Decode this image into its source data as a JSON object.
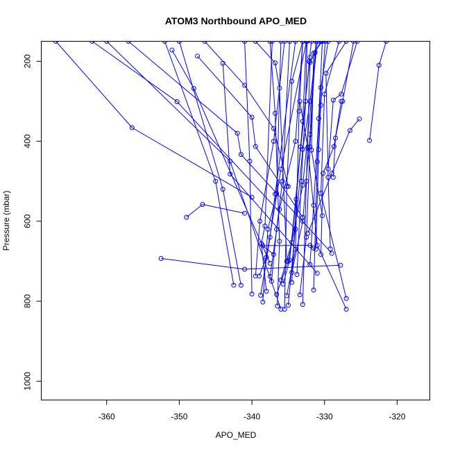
{
  "chart_data": {
    "type": "line",
    "title": "ATOM3 Northbound APO_MED",
    "xlabel": "APO_MED",
    "ylabel": "Pressure (mbar)",
    "xlim": [
      -369,
      -315.5
    ],
    "ylim": [
      1047,
      150
    ],
    "y_reversed": true,
    "x_ticks": [
      -360,
      -350,
      -340,
      -330,
      -320
    ],
    "y_ticks": [
      200,
      400,
      600,
      800,
      1000
    ],
    "grid": false,
    "legend": "none",
    "series_color": "#0000ff",
    "marker": "open-circle",
    "profiles": [
      {
        "points": [
          [
            -367,
            150
          ],
          [
            -356.5,
            366
          ],
          [
            -340,
            540
          ]
        ]
      },
      {
        "points": [
          [
            -362,
            150
          ],
          [
            -350.3,
            301
          ],
          [
            -334,
            620
          ]
        ]
      },
      {
        "points": [
          [
            -360,
            150
          ],
          [
            -343,
            450
          ],
          [
            -336,
            820
          ]
        ]
      },
      {
        "points": [
          [
            -357,
            150
          ],
          [
            -342,
            380
          ],
          [
            -341.5,
            433
          ],
          [
            -329,
            680
          ]
        ]
      },
      {
        "points": [
          [
            -351,
            172
          ],
          [
            -348,
            268
          ],
          [
            -337.5,
            705
          ]
        ]
      },
      {
        "points": [
          [
            -347.5,
            187
          ],
          [
            -340,
            340
          ],
          [
            -339.5,
            413
          ],
          [
            -333,
            590
          ]
        ]
      },
      {
        "points": [
          [
            -344,
            205
          ],
          [
            -343,
            482
          ],
          [
            -331,
            730
          ]
        ]
      },
      {
        "points": [
          [
            -346.5,
            150
          ],
          [
            -341,
            260
          ],
          [
            -337,
            368
          ],
          [
            -335,
            513
          ]
        ]
      },
      {
        "points": [
          [
            -339.5,
            150
          ],
          [
            -336.8,
            204
          ],
          [
            -336.2,
            267
          ],
          [
            -335.2,
            700
          ]
        ]
      },
      {
        "points": [
          [
            -352.5,
            693
          ],
          [
            -341,
            720
          ],
          [
            -327.8,
            710
          ]
        ]
      },
      {
        "points": [
          [
            -349,
            590
          ],
          [
            -346.8,
            558
          ],
          [
            -341,
            580
          ]
        ]
      },
      {
        "points": [
          [
            -342.5,
            760
          ],
          [
            -345,
            500
          ],
          [
            -352,
            150
          ]
        ]
      },
      {
        "points": [
          [
            -341.5,
            760
          ],
          [
            -344,
            520
          ],
          [
            -350,
            150
          ]
        ]
      },
      {
        "points": [
          [
            -340,
            782
          ],
          [
            -340.3,
            450
          ],
          [
            -341,
            150
          ]
        ]
      },
      {
        "points": [
          [
            -338.5,
            802
          ],
          [
            -337.8,
            620
          ],
          [
            -336.6,
            531
          ],
          [
            -336,
            150
          ]
        ]
      },
      {
        "points": [
          [
            -336.5,
            812
          ],
          [
            -336.2,
            650
          ],
          [
            -336.8,
            330
          ],
          [
            -337.5,
            150
          ]
        ]
      },
      {
        "points": [
          [
            -335.5,
            820
          ],
          [
            -335.2,
            513
          ],
          [
            -334.5,
            250
          ],
          [
            -333,
            150
          ]
        ]
      },
      {
        "points": [
          [
            -335,
            810
          ],
          [
            -333,
            420
          ],
          [
            -332,
            300
          ],
          [
            -331,
            150
          ]
        ]
      },
      {
        "points": [
          [
            -333,
            808
          ],
          [
            -332.5,
            500
          ],
          [
            -332,
            203
          ],
          [
            -330.5,
            150
          ]
        ]
      },
      {
        "points": [
          [
            -331.5,
            772
          ],
          [
            -331,
            451
          ],
          [
            -330.5,
            266
          ],
          [
            -329.5,
            150
          ]
        ]
      },
      {
        "points": [
          [
            -327,
            820
          ],
          [
            -331,
            660
          ],
          [
            -332.3,
            415
          ],
          [
            -333.4,
            300
          ]
        ]
      },
      {
        "points": [
          [
            -327,
            793
          ],
          [
            -330.5,
            530
          ],
          [
            -330,
            282
          ],
          [
            -328,
            150
          ]
        ]
      },
      {
        "points": [
          [
            -329.2,
            669
          ],
          [
            -329.5,
            490
          ],
          [
            -329.8,
            230
          ],
          [
            -327,
            150
          ]
        ]
      },
      {
        "points": [
          [
            -329.5,
            469
          ],
          [
            -328.8,
            297
          ],
          [
            -327.7,
            282
          ],
          [
            -325.5,
            150
          ]
        ]
      },
      {
        "points": [
          [
            -323.8,
            398
          ],
          [
            -322.5,
            210
          ],
          [
            -321.5,
            150
          ]
        ]
      },
      {
        "points": [
          [
            -325.2,
            344
          ],
          [
            -326.5,
            373
          ],
          [
            -329,
            480
          ],
          [
            -332.3,
            630
          ]
        ]
      },
      {
        "points": [
          [
            -330.3,
            586
          ],
          [
            -331.8,
            422
          ],
          [
            -331.5,
            180
          ],
          [
            -330.3,
            150
          ]
        ]
      },
      {
        "points": [
          [
            -337,
            683
          ],
          [
            -338.5,
            661
          ],
          [
            -332,
            660
          ],
          [
            -331.5,
            667
          ]
        ]
      },
      {
        "points": [
          [
            -338.8,
            785
          ],
          [
            -337.5,
            640
          ],
          [
            -336.8,
            532
          ],
          [
            -334,
            150
          ]
        ]
      },
      {
        "points": [
          [
            -339,
            737
          ],
          [
            -338,
            690
          ],
          [
            -336,
            470
          ],
          [
            -332.5,
            150
          ]
        ]
      },
      {
        "points": [
          [
            -336.6,
            783
          ],
          [
            -335,
            700
          ],
          [
            -333,
            510
          ],
          [
            -331,
            150
          ]
        ]
      },
      {
        "points": [
          [
            -336,
            747
          ],
          [
            -334.5,
            653
          ],
          [
            -333.3,
            414
          ],
          [
            -332,
            190
          ]
        ]
      },
      {
        "points": [
          [
            -335.7,
            757
          ],
          [
            -334.8,
            697
          ],
          [
            -332.1,
            200
          ],
          [
            -331.8,
            150
          ]
        ]
      },
      {
        "points": [
          [
            -334.5,
            728
          ],
          [
            -333,
            600
          ],
          [
            -332,
            383
          ],
          [
            -331.3,
            178
          ]
        ]
      },
      {
        "points": [
          [
            -332,
            708
          ],
          [
            -331.5,
            560
          ],
          [
            -330.8,
            343
          ],
          [
            -330.3,
            150
          ]
        ]
      },
      {
        "points": [
          [
            -331.2,
            670
          ],
          [
            -330.8,
            421
          ],
          [
            -330.5,
            310
          ],
          [
            -329.9,
            150
          ]
        ]
      },
      {
        "points": [
          [
            -330.5,
            683
          ],
          [
            -330.2,
            480
          ],
          [
            -328.7,
            413
          ],
          [
            -327.7,
            300
          ]
        ]
      },
      {
        "points": [
          [
            -328.8,
            490
          ],
          [
            -328.5,
            392
          ],
          [
            -327.5,
            300
          ],
          [
            -326,
            150
          ]
        ]
      },
      {
        "points": [
          [
            -337.5,
            738
          ],
          [
            -336.2,
            570
          ],
          [
            -334,
            400
          ],
          [
            -333,
            150
          ]
        ]
      },
      {
        "points": [
          [
            -338,
            775
          ],
          [
            -338.7,
            656
          ],
          [
            -338.2,
            612
          ],
          [
            -337.2,
            150
          ]
        ]
      },
      {
        "points": [
          [
            -333.4,
            784
          ],
          [
            -332.5,
            640
          ],
          [
            -332,
            414
          ],
          [
            -331.2,
            150
          ]
        ]
      },
      {
        "points": [
          [
            -337.3,
            750
          ],
          [
            -336.6,
            620
          ],
          [
            -335.8,
            500
          ],
          [
            -334.8,
            150
          ]
        ]
      },
      {
        "points": [
          [
            -335.2,
            786
          ],
          [
            -334,
            670
          ],
          [
            -333.5,
            325
          ],
          [
            -333,
            150
          ]
        ]
      },
      {
        "points": [
          [
            -333.8,
            733
          ],
          [
            -333.2,
            500
          ],
          [
            -332.6,
            300
          ],
          [
            -332.4,
            150
          ]
        ]
      },
      {
        "points": [
          [
            -339.5,
            737
          ],
          [
            -338.9,
            600
          ],
          [
            -337,
            400
          ],
          [
            -335.5,
            150
          ]
        ]
      },
      {
        "points": [
          [
            -334.5,
            753
          ],
          [
            -333.9,
            545
          ],
          [
            -333,
            350
          ],
          [
            -332.5,
            150
          ]
        ]
      }
    ]
  }
}
